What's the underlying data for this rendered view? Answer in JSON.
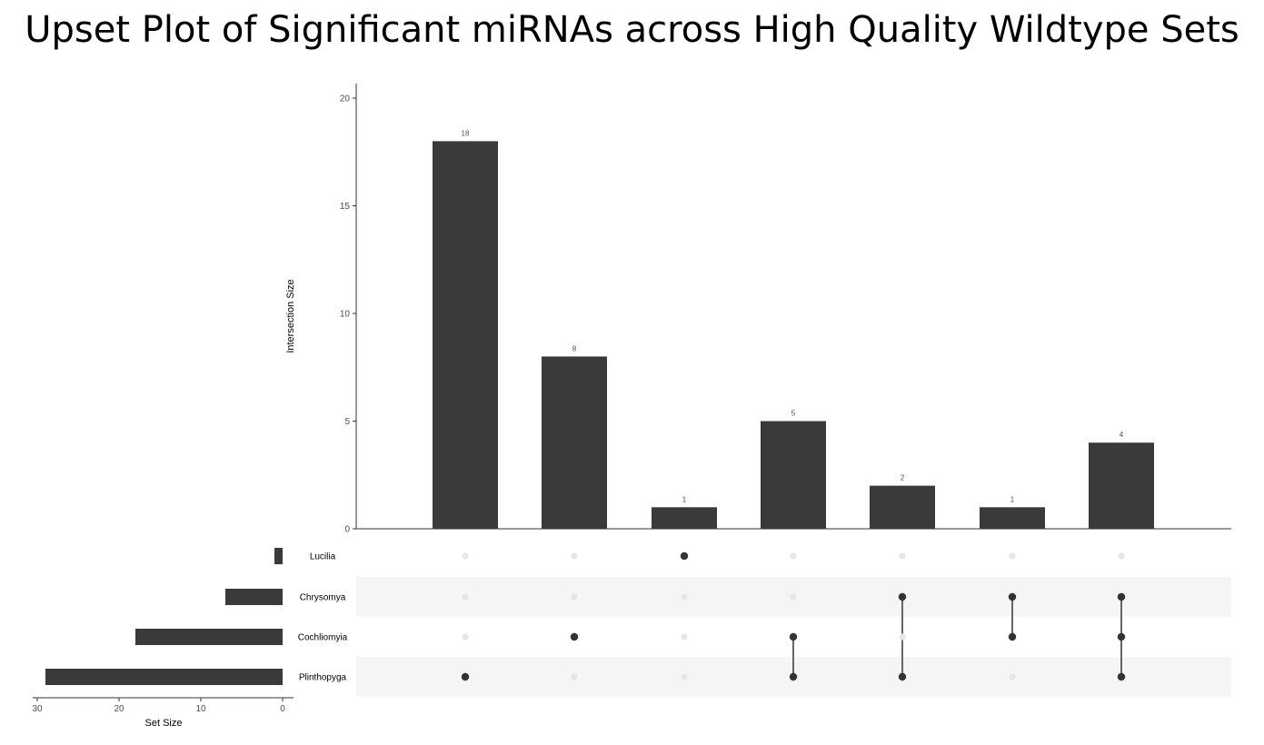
{
  "chart_data": {
    "type": "upset",
    "title": "Upset Plot of Significant miRNAs across High Quality Wildtype Sets",
    "intersection_axis": {
      "label": "Intersection Size",
      "ylim": [
        0,
        20
      ],
      "ticks": [
        0,
        5,
        10,
        15,
        20
      ]
    },
    "set_size_axis": {
      "label": "Set Size",
      "xlim": [
        0,
        30
      ],
      "ticks": [
        30,
        20,
        10,
        0
      ]
    },
    "sets": [
      {
        "name": "Lucilia",
        "size": 1
      },
      {
        "name": "Chrysomya",
        "size": 7
      },
      {
        "name": "Cochliomyia",
        "size": 18
      },
      {
        "name": "Plinthopyga",
        "size": 29
      }
    ],
    "intersections": [
      {
        "sets": [
          "Plinthopyga"
        ],
        "size": 18,
        "label": "18"
      },
      {
        "sets": [
          "Cochliomyia"
        ],
        "size": 8,
        "label": "8"
      },
      {
        "sets": [
          "Lucilia"
        ],
        "size": 1,
        "label": "1"
      },
      {
        "sets": [
          "Cochliomyia",
          "Plinthopyga"
        ],
        "size": 5,
        "label": "5"
      },
      {
        "sets": [
          "Chrysomya",
          "Plinthopyga"
        ],
        "size": 2,
        "label": "2"
      },
      {
        "sets": [
          "Chrysomya",
          "Cochliomyia"
        ],
        "size": 1,
        "label": "1"
      },
      {
        "sets": [
          "Chrysomya",
          "Cochliomyia",
          "Plinthopyga"
        ],
        "size": 4,
        "label": "4"
      }
    ],
    "colors": {
      "bar": "#3a3a3a",
      "dot_active": "#333333",
      "dot_inactive": "#e6e6e6",
      "stripe": "#f5f5f5"
    }
  }
}
